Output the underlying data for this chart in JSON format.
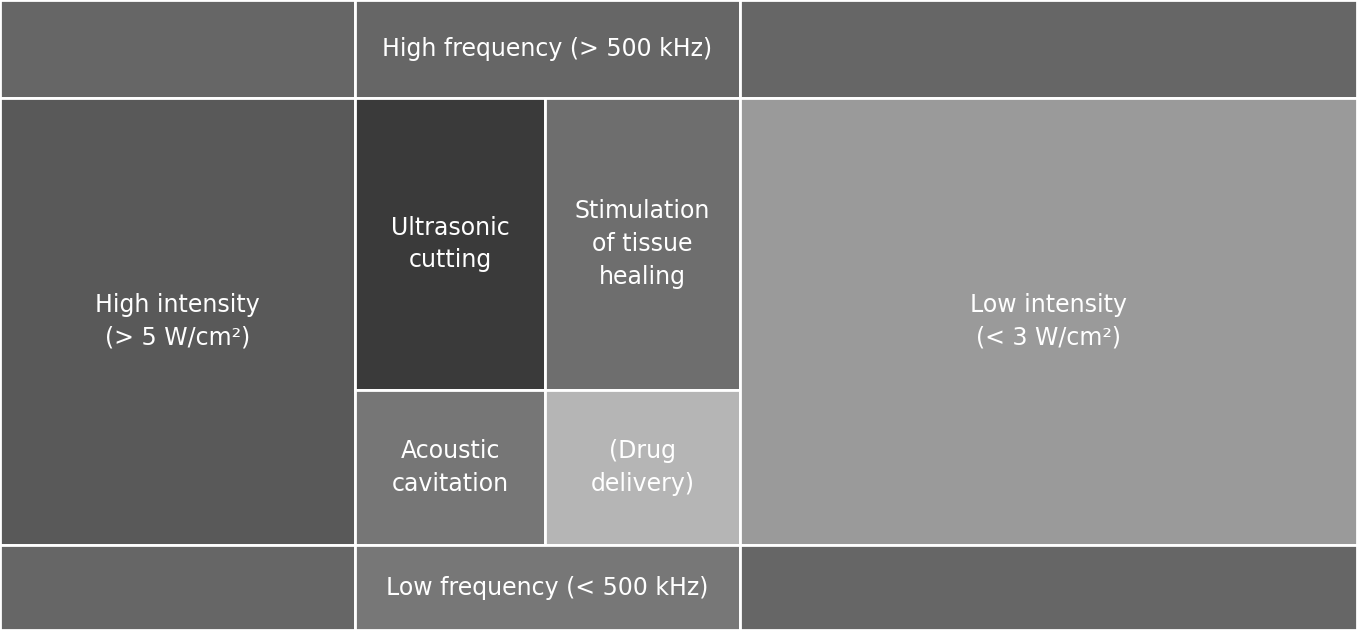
{
  "background_color": "#666666",
  "col_splits": [
    0.2617,
    0.4017,
    0.5453
  ],
  "row_splits": [
    0.1556,
    0.619,
    0.8651
  ],
  "colors": {
    "top_left": "#666666",
    "top_mid": "#666666",
    "top_right": "#666666",
    "mid_left": "#595959",
    "ultrasonic": "#3a3a3a",
    "stimulation": "#6e6e6e",
    "mid_right": "#9a9a9a",
    "acoustic": "#767676",
    "drug": "#b5b5b5",
    "bot_left": "#666666",
    "bot_mid": "#777777",
    "bot_right": "#666666"
  },
  "texts": {
    "high_freq": "High frequency (> 500 kHz)",
    "high_int": "High intensity\n(> 5 W/cm²)",
    "ultrasonic": "Ultrasonic\ncutting",
    "stimulation": "Stimulation\nof tissue\nhealing",
    "low_int": "Low intensity\n(< 3 W/cm²)",
    "acoustic": "Acoustic\ncavitation",
    "drug": "(Drug\ndelivery)",
    "low_freq": "Low frequency (< 500 kHz)"
  },
  "text_color": "#ffffff",
  "line_color": "#ffffff",
  "line_width": 2.0,
  "fontsize": 17
}
